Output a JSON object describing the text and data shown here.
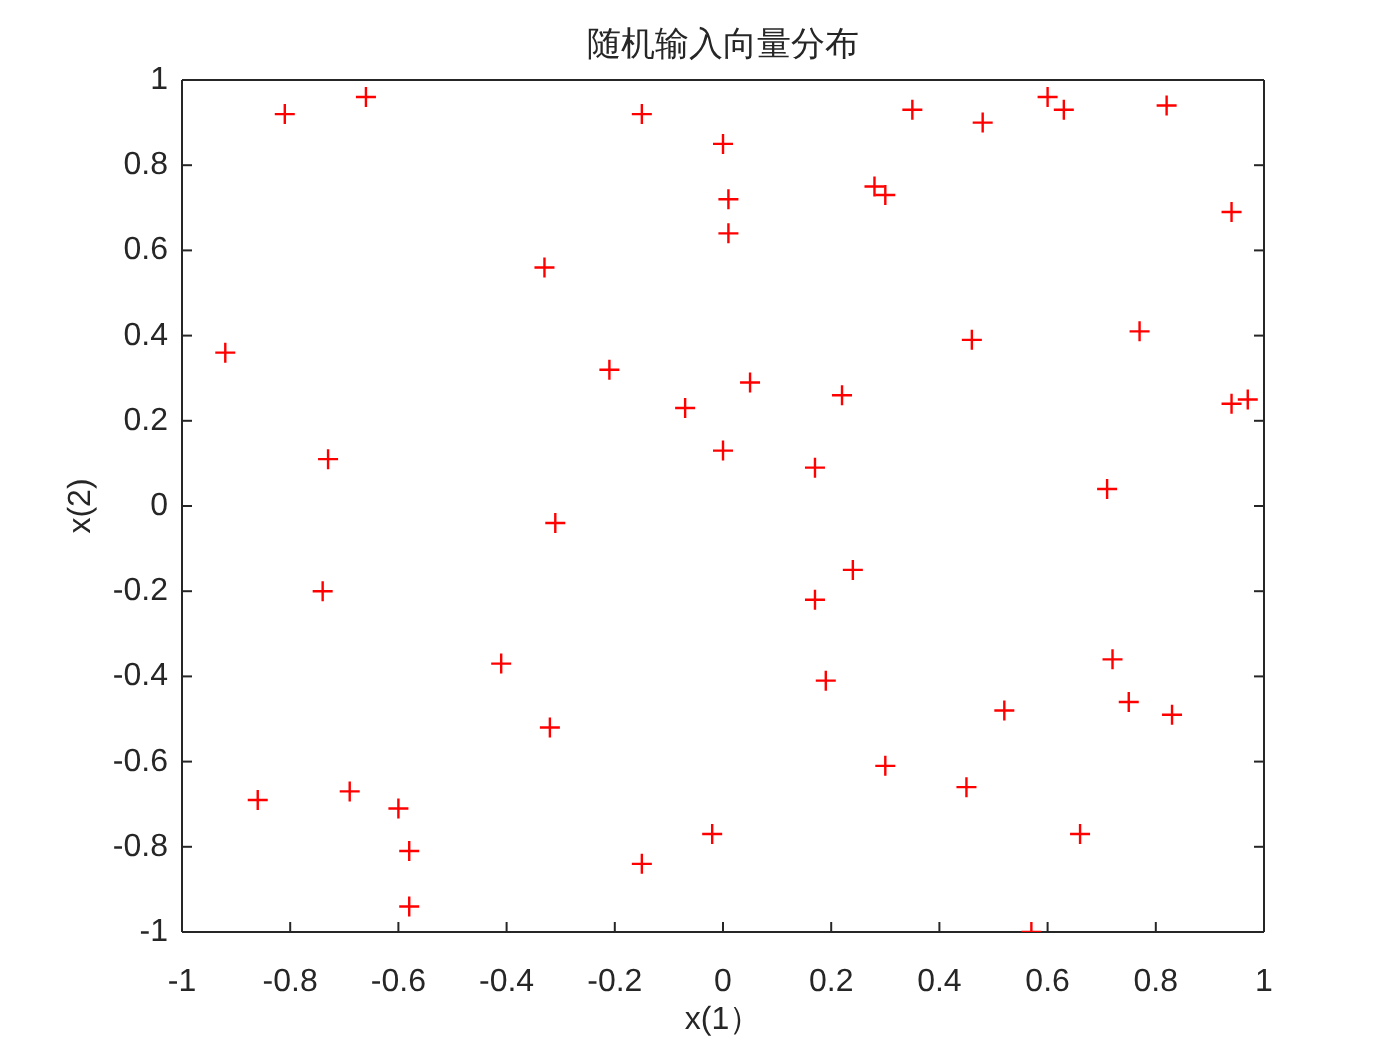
{
  "chart_data": {
    "type": "scatter",
    "title": "随机输入向量分布",
    "xlabel": "x(1）",
    "ylabel": "x(2)",
    "x": [
      -0.81,
      -0.66,
      -0.15,
      0.0,
      0.01,
      0.01,
      0.28,
      0.3,
      0.35,
      0.48,
      0.6,
      0.63,
      0.82,
      0.94,
      -0.33,
      -0.92,
      0.46,
      0.77,
      -0.21,
      0.05,
      -0.07,
      0.22,
      0.94,
      0.97,
      0.0,
      -0.73,
      0.17,
      0.71,
      -0.31,
      -0.74,
      0.24,
      0.17,
      -0.41,
      0.19,
      0.72,
      0.75,
      0.52,
      0.83,
      -0.32,
      0.3,
      0.45,
      -0.86,
      -0.69,
      -0.6,
      -0.58,
      -0.58,
      -0.15,
      -0.02,
      0.66,
      0.57
    ],
    "values": [
      0.92,
      0.96,
      0.92,
      0.85,
      0.72,
      0.64,
      0.75,
      0.73,
      0.93,
      0.9,
      0.96,
      0.93,
      0.94,
      0.69,
      0.56,
      0.36,
      0.39,
      0.41,
      0.32,
      0.29,
      0.23,
      0.26,
      0.24,
      0.25,
      0.13,
      0.11,
      0.09,
      0.04,
      -0.04,
      -0.2,
      -0.15,
      -0.22,
      -0.37,
      -0.41,
      -0.36,
      -0.46,
      -0.48,
      -0.49,
      -0.52,
      -0.61,
      -0.66,
      -0.69,
      -0.67,
      -0.71,
      -0.81,
      -0.94,
      -0.84,
      -0.77,
      -0.77,
      -1.0
    ],
    "color": "#ff0000",
    "marker": "cross",
    "xlim": [
      -1,
      1
    ],
    "ylim": [
      -1,
      1
    ],
    "xticks": [
      -1,
      -0.8,
      -0.6,
      -0.4,
      -0.2,
      0,
      0.2,
      0.4,
      0.6,
      0.8,
      1
    ],
    "yticks": [
      -1,
      -0.8,
      -0.6,
      -0.4,
      -0.2,
      0,
      0.2,
      0.4,
      0.6,
      0.8,
      1
    ]
  }
}
